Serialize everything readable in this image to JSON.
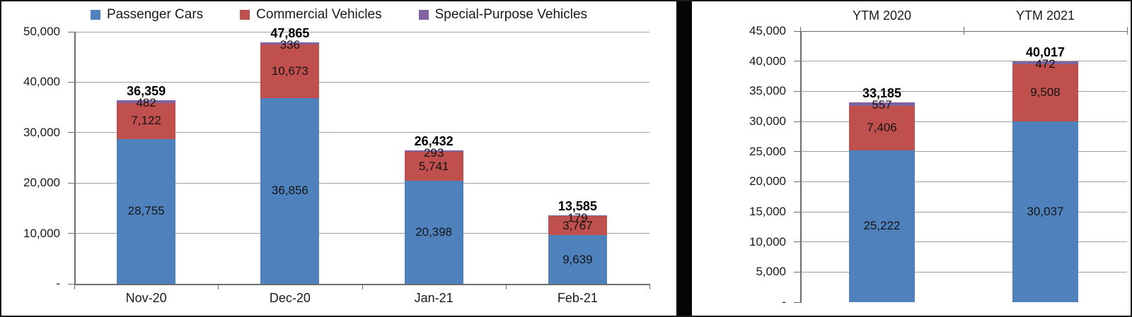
{
  "colors": {
    "passenger_cars": "#4F81BD",
    "commercial_vehicles": "#C0504D",
    "special_purpose_vehicles": "#8064A2",
    "gridline": "#A0A0A0",
    "axis": "#6E6E6E",
    "text": "#1A1A1A",
    "divider": "#050505"
  },
  "legend": {
    "position": "top",
    "items": [
      {
        "label": "Passenger Cars",
        "color": "#4F81BD"
      },
      {
        "label": "Commercial Vehicles",
        "color": "#C0504D"
      },
      {
        "label": "Special-Purpose Vehicles",
        "color": "#8064A2"
      }
    ]
  },
  "chart_data": [
    {
      "type": "bar",
      "stacked": true,
      "title": "",
      "categories": [
        "Nov-20",
        "Dec-20",
        "Jan-21",
        "Feb-21"
      ],
      "series": [
        {
          "name": "Passenger Cars",
          "color": "#4F81BD",
          "values": [
            28755,
            36856,
            20398,
            9639
          ]
        },
        {
          "name": "Commercial Vehicles",
          "color": "#C0504D",
          "values": [
            7122,
            10673,
            5741,
            3767
          ]
        },
        {
          "name": "Special-Purpose Vehicles",
          "color": "#8064A2",
          "values": [
            482,
            336,
            293,
            179
          ]
        }
      ],
      "totals": [
        36359,
        47865,
        26432,
        13585
      ],
      "ylim": [
        0,
        50000
      ],
      "ytick_step": 10000,
      "ytick_labels": [
        "-",
        "10,000",
        "20,000",
        "30,000",
        "40,000",
        "50,000"
      ],
      "zero_tick_label": "-",
      "grid": true,
      "value_labels": true,
      "total_labels": true,
      "legend_position": "top",
      "category_label_position": "bottom"
    },
    {
      "type": "bar",
      "stacked": true,
      "title": "",
      "categories": [
        "YTM 2020",
        "YTM 2021"
      ],
      "series": [
        {
          "name": "Passenger Cars",
          "color": "#4F81BD",
          "values": [
            25222,
            30037
          ]
        },
        {
          "name": "Commercial Vehicles",
          "color": "#C0504D",
          "values": [
            7406,
            9508
          ]
        },
        {
          "name": "Special-Purpose Vehicles",
          "color": "#8064A2",
          "values": [
            557,
            472
          ]
        }
      ],
      "totals": [
        33185,
        40017
      ],
      "ylim": [
        0,
        45000
      ],
      "ytick_step": 5000,
      "ytick_labels": [
        "-",
        "5,000",
        "10,000",
        "15,000",
        "20,000",
        "25,000",
        "30,000",
        "35,000",
        "40,000",
        "45,000"
      ],
      "zero_tick_label": "-",
      "grid": true,
      "value_labels": true,
      "total_labels": true,
      "legend_position": "none",
      "category_label_position": "top"
    }
  ]
}
